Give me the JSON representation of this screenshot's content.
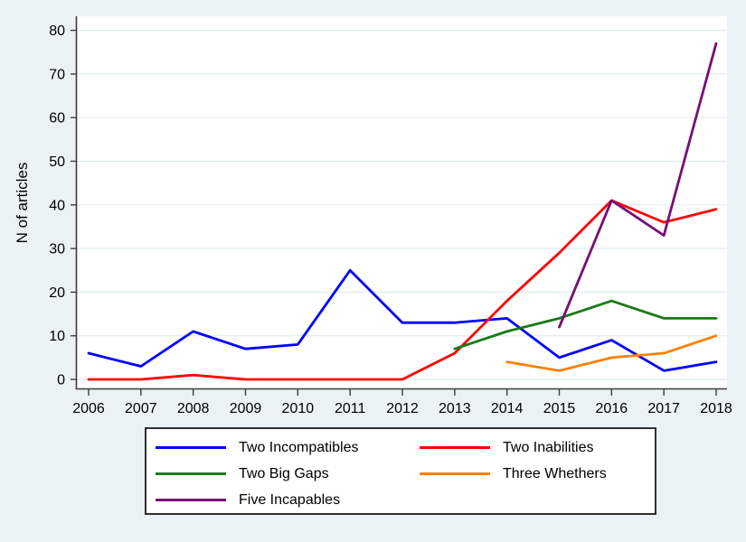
{
  "chart_data": {
    "type": "line",
    "title": "",
    "xlabel": "",
    "ylabel": "N of articles",
    "x_ticks": [
      2006,
      2007,
      2008,
      2009,
      2010,
      2011,
      2012,
      2013,
      2014,
      2015,
      2016,
      2017,
      2018
    ],
    "y_ticks": [
      0,
      10,
      20,
      30,
      40,
      50,
      60,
      70,
      80
    ],
    "xlim": [
      2006,
      2018
    ],
    "ylim": [
      0,
      80
    ],
    "grid": true,
    "legend_position": "bottom",
    "background_color": "#eaf2f3",
    "plot_background_color": "#ffffff",
    "grid_color": "#dfecef",
    "axis_color": "#3c3c3c",
    "series": [
      {
        "name": "Two Incompatibles",
        "color": "#0000ff",
        "x": [
          2006,
          2007,
          2008,
          2009,
          2010,
          2011,
          2012,
          2013,
          2014,
          2015,
          2016,
          2017,
          2018
        ],
        "values": [
          6,
          3,
          11,
          7,
          8,
          25,
          13,
          13,
          14,
          5,
          9,
          2,
          4
        ]
      },
      {
        "name": "Two Inabilities",
        "color": "#ff0000",
        "x": [
          2006,
          2007,
          2008,
          2009,
          2010,
          2011,
          2012,
          2013,
          2014,
          2015,
          2016,
          2017,
          2018
        ],
        "values": [
          0,
          0,
          1,
          0,
          0,
          0,
          0,
          6,
          18,
          29,
          41,
          36,
          39
        ]
      },
      {
        "name": "Two Big Gaps",
        "color": "#1a7a1a",
        "x": [
          2013,
          2014,
          2015,
          2016,
          2017,
          2018
        ],
        "values": [
          7,
          11,
          14,
          18,
          14,
          14
        ]
      },
      {
        "name": "Three Whethers",
        "color": "#ff8000",
        "x": [
          2014,
          2015,
          2016,
          2017,
          2018
        ],
        "values": [
          4,
          2,
          5,
          6,
          10
        ]
      },
      {
        "name": "Five Incapables",
        "color": "#770e77",
        "x": [
          2015,
          2016,
          2017,
          2018
        ],
        "values": [
          12,
          41,
          33,
          77
        ]
      }
    ]
  }
}
